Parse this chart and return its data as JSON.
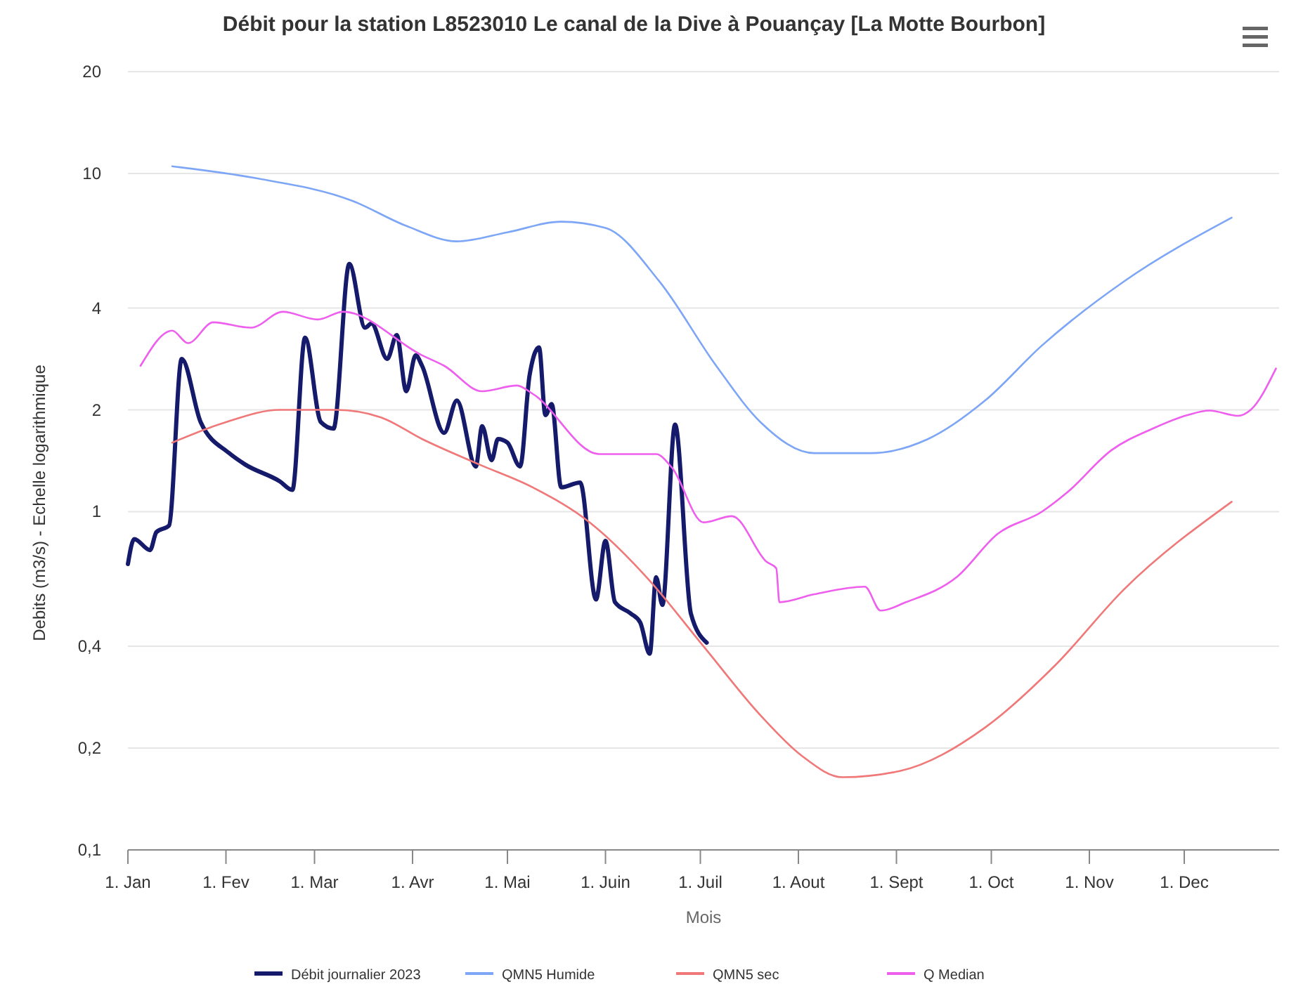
{
  "chart_data": {
    "type": "line",
    "title": "Débit pour la station L8523010 Le canal de la Dive à Pouançay [La Motte Bourbon]",
    "xlabel": "Mois",
    "ylabel": "Debits (m3/s) - Echelle logarithmique",
    "log": "y",
    "grid": "y",
    "legend": "bottom",
    "marker": "none",
    "line_style": "solid",
    "xlim": [
      "--01-01",
      "--12-31"
    ],
    "xticks": [
      {
        "value": "--01-01",
        "label": "1. Jan"
      },
      {
        "value": "--02-01",
        "label": "1. Fev"
      },
      {
        "value": "--03-01",
        "label": "1. Mar"
      },
      {
        "value": "--04-01",
        "label": "1. Avr"
      },
      {
        "value": "--05-01",
        "label": "1. Mai"
      },
      {
        "value": "--06-01",
        "label": "1. Juin"
      },
      {
        "value": "--07-01",
        "label": "1. Juil"
      },
      {
        "value": "--08-01",
        "label": "1. Aout"
      },
      {
        "value": "--09-01",
        "label": "1. Sept"
      },
      {
        "value": "--10-01",
        "label": "1. Oct"
      },
      {
        "value": "--11-01",
        "label": "1. Nov"
      },
      {
        "value": "--12-01",
        "label": "1. Dec"
      }
    ],
    "ylim": [
      0.1,
      20
    ],
    "yticks": [
      {
        "value": 0.1,
        "label": "0,1"
      },
      {
        "value": 0.2,
        "label": "0,2"
      },
      {
        "value": 0.4,
        "label": "0,4"
      },
      1,
      2,
      4,
      10,
      20
    ],
    "series": [
      {
        "name": "Débit journalier 2023",
        "color": "#151a6b",
        "x": [
          "--01-01",
          "--01-03",
          "--01-08",
          "--01-10",
          "--01-14",
          "--01-18",
          "--01-24",
          "--02-02",
          "--02-07",
          "--02-18",
          "--02-22",
          "--02-26",
          "--03-03",
          "--03-07",
          "--03-12",
          "--03-17",
          "--03-19",
          "--03-24",
          "--03-27",
          "--03-30",
          "--04-02",
          "--04-04",
          "--04-11",
          "--04-15",
          "--04-21",
          "--04-23",
          "--04-26",
          "--04-28",
          "--05-01",
          "--05-05",
          "--05-08",
          "--05-11",
          "--05-13",
          "--05-15",
          "--05-18",
          "--05-24",
          "--05-29",
          "--06-01",
          "--06-04",
          "--06-09",
          "--06-12",
          "--06-15",
          "--06-17",
          "--06-19",
          "--06-23",
          "--06-28",
          "--07-03"
        ],
        "values": [
          0.7,
          0.83,
          0.77,
          0.87,
          0.91,
          2.83,
          1.84,
          1.49,
          1.38,
          1.23,
          1.16,
          3.27,
          1.84,
          1.76,
          5.4,
          3.5,
          3.6,
          2.83,
          3.33,
          2.27,
          2.9,
          2.7,
          1.71,
          2.13,
          1.36,
          1.79,
          1.42,
          1.64,
          1.6,
          1.36,
          2.53,
          3.06,
          1.93,
          2.08,
          1.18,
          1.22,
          0.55,
          0.82,
          0.54,
          0.5,
          0.47,
          0.38,
          0.64,
          0.53,
          1.81,
          0.5,
          0.41
        ]
      },
      {
        "name": "QMN5 Humide",
        "color": "#7ea6f6",
        "x": [
          "--01-15",
          "--02-10",
          "--03-13",
          "--03-30",
          "--04-15",
          "--05-01",
          "--05-18",
          "--06-01",
          "--06-18",
          "--07-06",
          "--07-20",
          "--08-06",
          "--08-24",
          "--09-11",
          "--09-29",
          "--10-17",
          "--11-12",
          "--12-16"
        ],
        "values": [
          10.5,
          9.7,
          8.3,
          7.0,
          6.3,
          6.7,
          7.2,
          6.9,
          4.8,
          2.7,
          1.84,
          1.49,
          1.49,
          1.64,
          2.13,
          3.1,
          4.8,
          7.4
        ]
      },
      {
        "name": "QMN5 sec",
        "color": "#f07878",
        "x": [
          "--01-15",
          "--02-01",
          "--02-18",
          "--03-08",
          "--03-22",
          "--04-04",
          "--04-22",
          "--05-09",
          "--05-27",
          "--06-14",
          "--07-02",
          "--07-20",
          "--08-02",
          "--08-15",
          "--09-02",
          "--09-29",
          "--10-21",
          "--11-12",
          "--12-16"
        ],
        "values": [
          1.6,
          1.84,
          2.0,
          2.0,
          1.9,
          1.64,
          1.38,
          1.18,
          0.93,
          0.64,
          0.4,
          0.25,
          0.19,
          0.164,
          0.171,
          0.23,
          0.35,
          0.59,
          1.07
        ]
      },
      {
        "name": "Q Median",
        "color": "#ee5fee",
        "x": [
          "--01-05",
          "--01-15",
          "--01-20",
          "--01-28",
          "--02-09",
          "--02-19",
          "--03-02",
          "--03-10",
          "--04-04",
          "--04-11",
          "--04-23",
          "--05-04",
          "--05-09",
          "--05-30",
          "--06-17",
          "--06-22",
          "--07-02",
          "--07-11",
          "--07-22",
          "--07-25",
          "--07-26",
          "--08-06",
          "--08-22",
          "--08-27",
          "--09-04",
          "--09-20",
          "--10-03",
          "--10-17",
          "--10-25",
          "--11-08",
          "--11-21",
          "--12-02",
          "--12-09",
          "--12-18",
          "--12-22",
          "--12-30"
        ],
        "values": [
          2.7,
          3.43,
          3.15,
          3.63,
          3.5,
          3.9,
          3.7,
          3.9,
          2.9,
          2.7,
          2.27,
          2.36,
          2.23,
          1.48,
          1.48,
          1.35,
          0.93,
          0.97,
          0.71,
          0.68,
          0.54,
          0.57,
          0.6,
          0.51,
          0.54,
          0.64,
          0.86,
          1.0,
          1.14,
          1.52,
          1.76,
          1.93,
          1.99,
          1.92,
          2.0,
          2.65
        ]
      }
    ]
  }
}
